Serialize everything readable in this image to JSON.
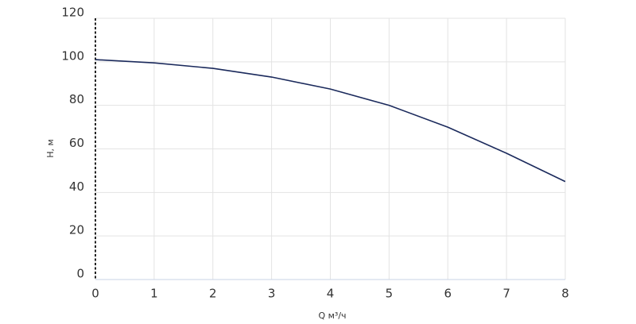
{
  "chart_data": {
    "type": "line",
    "x_label": "Q м³/ч",
    "y_label": "H, м",
    "x": [
      0,
      1,
      2,
      3,
      4,
      5,
      6,
      7,
      8
    ],
    "series": [
      {
        "color": "#1b2a5c",
        "values": [
          101,
          99.5,
          97,
          93,
          87.5,
          80,
          70,
          58,
          45
        ]
      }
    ],
    "xlim": [
      0,
      8
    ],
    "xticks": [
      0,
      1,
      2,
      3,
      4,
      5,
      6,
      7,
      8
    ],
    "ylim": [
      0,
      120
    ],
    "yticks": [
      0,
      20,
      40,
      60,
      80,
      100,
      120
    ],
    "grid": true
  }
}
